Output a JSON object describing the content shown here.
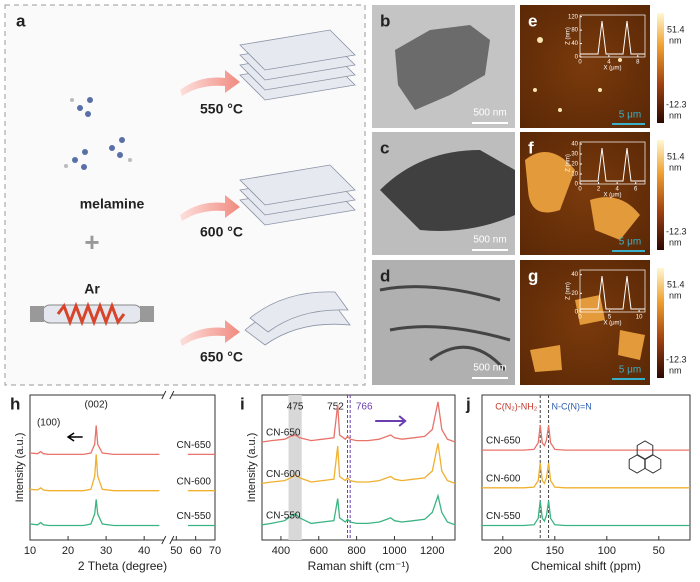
{
  "panel_a": {
    "label": "a",
    "precursor": "melamine",
    "plus": "+",
    "gas": "Ar",
    "temperatures": [
      "550 °C",
      "600 °C",
      "650 °C"
    ]
  },
  "tem_panels": [
    {
      "label": "b",
      "scale_bar": "500 nm"
    },
    {
      "label": "c",
      "scale_bar": "500 nm"
    },
    {
      "label": "d",
      "scale_bar": "500 nm"
    }
  ],
  "afm_panels": [
    {
      "label": "e",
      "scale_bar": "5 μm",
      "colorbar_max": "51.4",
      "colorbar_min": "-12.3",
      "colorbar_unit": "nm",
      "inset": {
        "ylabel": "Z (nm)",
        "xlabel": "X (μm)",
        "ylim": [
          0,
          125
        ],
        "yticks": [
          0,
          40,
          80,
          120
        ],
        "xlim": [
          0,
          9
        ],
        "xticks": [
          0,
          4,
          8
        ]
      }
    },
    {
      "label": "f",
      "scale_bar": "5 μm",
      "colorbar_max": "51.4",
      "colorbar_min": "-12.3",
      "colorbar_unit": "nm",
      "inset": {
        "ylabel": "Z (nm)",
        "xlabel": "X (μm)",
        "ylim": [
          0,
          42
        ],
        "yticks": [
          0,
          10,
          20,
          30,
          40
        ],
        "xlim": [
          0,
          7
        ],
        "xticks": [
          0,
          2,
          4,
          6
        ]
      }
    },
    {
      "label": "g",
      "scale_bar": "5 μm",
      "colorbar_max": "51.4",
      "colorbar_min": "-12.3",
      "colorbar_unit": "nm",
      "inset": {
        "ylabel": "Z (nm)",
        "xlabel": "X (μm)",
        "ylim": [
          0,
          45
        ],
        "yticks": [
          0,
          20,
          40
        ],
        "xlim": [
          0,
          11
        ],
        "xticks": [
          0,
          5,
          10
        ]
      }
    }
  ],
  "chart_data": [
    {
      "type": "line",
      "label": "h",
      "xlabel": "2 Theta (degree)",
      "ylabel": "Intensity (a.u.)",
      "xlim": [
        10,
        70
      ],
      "xbreak": [
        45,
        48
      ],
      "xticks": [
        10,
        20,
        30,
        40,
        50,
        60,
        70
      ],
      "ylim": [
        0,
        100
      ],
      "series_label_side": "right",
      "annotations": [
        "(002)",
        "(100)"
      ],
      "x": [
        10,
        12,
        12.8,
        13.5,
        15,
        20,
        24,
        26,
        27,
        27.4,
        27.8,
        29,
        32,
        38,
        44,
        56,
        62,
        70
      ],
      "series": [
        {
          "name": "CN-650",
          "color": "#e8736b",
          "values": [
            60,
            59.5,
            61,
            59.5,
            59,
            59,
            59,
            60,
            66,
            79,
            66,
            60,
            59,
            59,
            59,
            59,
            59,
            59
          ]
        },
        {
          "name": "CN-600",
          "color": "#f0b030",
          "values": [
            35,
            34.5,
            36,
            34.5,
            34,
            34,
            34,
            35,
            44,
            59,
            44,
            35,
            34,
            34,
            34,
            34,
            34,
            34
          ]
        },
        {
          "name": "CN-550",
          "color": "#3cb482",
          "values": [
            11,
            10.5,
            12,
            10.5,
            10,
            10,
            10,
            11,
            18,
            28,
            18,
            11,
            10,
            10,
            10,
            10,
            10,
            10
          ]
        }
      ]
    },
    {
      "type": "line",
      "label": "i",
      "xlabel": "Raman shift (cm⁻¹)",
      "ylabel": "Intensity (a.u.)",
      "xlim": [
        300,
        1320
      ],
      "xticks": [
        400,
        600,
        800,
        1000,
        1200
      ],
      "ylim": [
        0,
        105
      ],
      "series_label_side": "left",
      "band": [
        440,
        510
      ],
      "band_label": 475,
      "dashed_lines": [
        752,
        766
      ],
      "dashed_color": "#6a3db0",
      "x": [
        300,
        350,
        420,
        450,
        475,
        500,
        560,
        620,
        680,
        700,
        710,
        740,
        752,
        766,
        800,
        860,
        920,
        980,
        1000,
        1040,
        1100,
        1160,
        1200,
        1230,
        1250,
        1280,
        1320
      ],
      "series": [
        {
          "name": "CN-650",
          "color": "#e8736b",
          "values": [
            71,
            72,
            73,
            75,
            76,
            74,
            72,
            73,
            74,
            98,
            76,
            73,
            75,
            73,
            72,
            72,
            73,
            76,
            74,
            73,
            74,
            75,
            80,
            100,
            80,
            73,
            71
          ]
        },
        {
          "name": "CN-600",
          "color": "#f0b030",
          "values": [
            41,
            42,
            43,
            45,
            47,
            45,
            42,
            43,
            44,
            68,
            46,
            43,
            45,
            43,
            42,
            42,
            43,
            46,
            44,
            43,
            44,
            45,
            50,
            70,
            50,
            43,
            41
          ]
        },
        {
          "name": "CN-550",
          "color": "#3cb482",
          "values": [
            11,
            12,
            14,
            17,
            19,
            16,
            12,
            13,
            14,
            30,
            16,
            13,
            15,
            13,
            12,
            12,
            13,
            16,
            14,
            13,
            14,
            15,
            20,
            32,
            20,
            13,
            11
          ]
        }
      ]
    },
    {
      "type": "line",
      "label": "j",
      "xlabel": "Chemical shift (ppm)",
      "xlim": [
        220,
        20
      ],
      "xticks": [
        200,
        150,
        100,
        50
      ],
      "ylim": [
        0,
        100
      ],
      "series_label_side": "left",
      "dashed_lines": [
        164,
        156
      ],
      "dashed_color": "#444",
      "annotations": [
        "C(N₂)-NH₂",
        "N-C(N)=N"
      ],
      "x": [
        220,
        200,
        180,
        170,
        166,
        164,
        162,
        160,
        158,
        156,
        154,
        150,
        140,
        100,
        60,
        20
      ],
      "series": [
        {
          "name": "CN-650",
          "color": "#e8736b",
          "values": [
            62,
            62,
            62,
            62.5,
            67,
            79,
            67,
            65,
            69,
            79,
            67,
            62.5,
            62,
            62,
            62,
            62
          ]
        },
        {
          "name": "CN-600",
          "color": "#f0b030",
          "values": [
            36,
            36,
            36,
            36.5,
            41,
            53,
            41,
            39,
            43,
            53,
            41,
            36.5,
            36,
            36,
            36,
            36
          ]
        },
        {
          "name": "CN-550",
          "color": "#3cb482",
          "values": [
            10,
            10,
            10,
            10.5,
            15,
            27,
            15,
            13,
            17,
            27,
            15,
            10.5,
            10,
            10,
            10,
            10
          ]
        }
      ]
    }
  ]
}
